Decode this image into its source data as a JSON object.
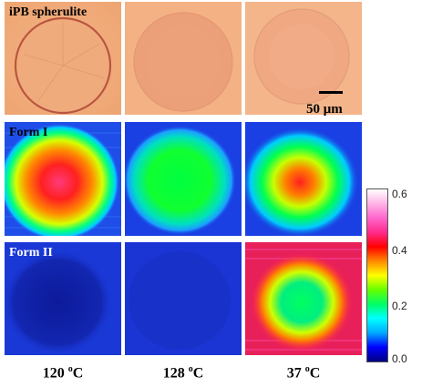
{
  "rows": {
    "optical": "iPB spherulite",
    "form1": "Form I",
    "form2": "Form II"
  },
  "scale": "50 μm",
  "columns": [
    "120",
    "128",
    "37"
  ],
  "temp_unit_sup": "o",
  "temp_unit": "C",
  "colorbar": {
    "ticks": [
      "0.6",
      "0.4",
      "0.2",
      "0.0"
    ],
    "values": [
      0.6,
      0.4,
      0.2,
      0.0
    ],
    "range": [
      0,
      0.6
    ],
    "colors": [
      "#000080",
      "#0000ff",
      "#00aaff",
      "#00ffff",
      "#00ff66",
      "#66ff00",
      "#ffff00",
      "#ff8800",
      "#ff0000",
      "#ff2a8a",
      "#ff66cc",
      "#ffb3e6",
      "#ffffff"
    ]
  },
  "colors": {
    "optical_bg": "#f2ae7c",
    "map_bg": "#1a3ce0"
  }
}
